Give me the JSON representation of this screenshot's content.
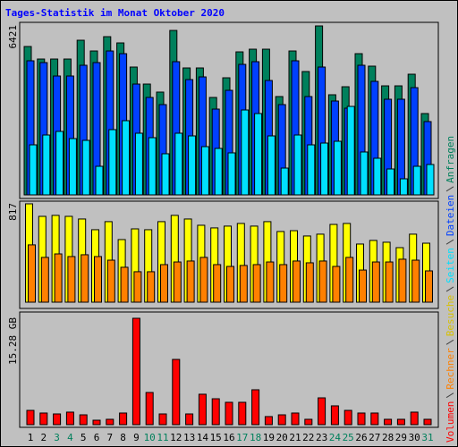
{
  "chart_data": [
    {
      "type": "bar",
      "title": "Tages-Statistik im Monat Oktober 2020",
      "categories": [
        "1",
        "2",
        "3",
        "4",
        "5",
        "6",
        "7",
        "8",
        "9",
        "10",
        "11",
        "12",
        "13",
        "14",
        "15",
        "16",
        "17",
        "18",
        "19",
        "20",
        "21",
        "22",
        "23",
        "24",
        "25",
        "26",
        "27",
        "28",
        "29",
        "30",
        "31"
      ],
      "weekend_indexes": [
        2,
        3,
        9,
        10,
        16,
        17,
        23,
        24,
        30
      ],
      "weekend_label_color": "#00805c",
      "ylim": [
        0,
        6421
      ],
      "yticks": [
        6421
      ],
      "series": [
        {
          "name": "Anfragen",
          "color": "#00805c",
          "values": [
            5639,
            5163,
            5163,
            5163,
            5877,
            5469,
            6013,
            5775,
            4858,
            4212,
            3907,
            6250,
            4824,
            4824,
            3703,
            4450,
            5435,
            5537,
            5537,
            3737,
            5469,
            4688,
            6421,
            3805,
            4110,
            5367,
            4892,
            4144,
            4144,
            4586,
            3091
          ]
        },
        {
          "name": "Dateien",
          "color": "#0040ff",
          "values": [
            5096,
            5028,
            4518,
            4518,
            4926,
            5028,
            5469,
            5367,
            4212,
            3703,
            3431,
            5062,
            4382,
            4484,
            3261,
            3974,
            4960,
            5062,
            4348,
            3431,
            5096,
            3737,
            4858,
            3567,
            3295,
            4926,
            4314,
            3635,
            3635,
            4076,
            2786
          ]
        },
        {
          "name": "Seiten",
          "color": "#00e0ff",
          "values": [
            1902,
            2276,
            2412,
            2140,
            2072,
            1087,
            2480,
            2820,
            2344,
            2174,
            1563,
            2344,
            2242,
            1834,
            1766,
            1597,
            3227,
            3091,
            2242,
            1019,
            2276,
            1902,
            1970,
            2038,
            3363,
            1631,
            1393,
            985,
            611,
            1087,
            1155
          ]
        }
      ]
    },
    {
      "type": "bar",
      "ylim": [
        0,
        817
      ],
      "yticks": [
        817
      ],
      "series": [
        {
          "name": "Besuche",
          "color": "#ffff00",
          "values": [
            817,
            713,
            721,
            713,
            691,
            602,
            669,
            520,
            609,
            602,
            669,
            721,
            691,
            639,
            617,
            632,
            654,
            632,
            669,
            587,
            594,
            550,
            565,
            646,
            654,
            483,
            513,
            498,
            453,
            565,
            490
          ]
        },
        {
          "name": "Rechner",
          "color": "#ff8000",
          "values": [
            476,
            372,
            401,
            379,
            394,
            379,
            349,
            290,
            253,
            253,
            312,
            334,
            342,
            372,
            312,
            297,
            305,
            312,
            334,
            312,
            342,
            327,
            342,
            297,
            372,
            267,
            334,
            334,
            357,
            349,
            260
          ]
        }
      ]
    },
    {
      "type": "bar",
      "ylim": [
        0,
        15.28
      ],
      "yticks": [
        {
          "value": 15.28,
          "label": "15.28 GB"
        }
      ],
      "series": [
        {
          "name": "Volumen",
          "color": "#ff0000",
          "values": [
            2.05,
            1.67,
            1.54,
            1.8,
            1.41,
            0.64,
            0.77,
            1.67,
            15.28,
            4.62,
            1.54,
            9.37,
            1.54,
            4.37,
            3.72,
            3.21,
            3.21,
            5.01,
            1.16,
            1.41,
            1.67,
            0.77,
            3.85,
            2.7,
            2.05,
            1.67,
            1.67,
            0.77,
            0.77,
            1.8,
            0.77
          ]
        }
      ]
    }
  ]
}
